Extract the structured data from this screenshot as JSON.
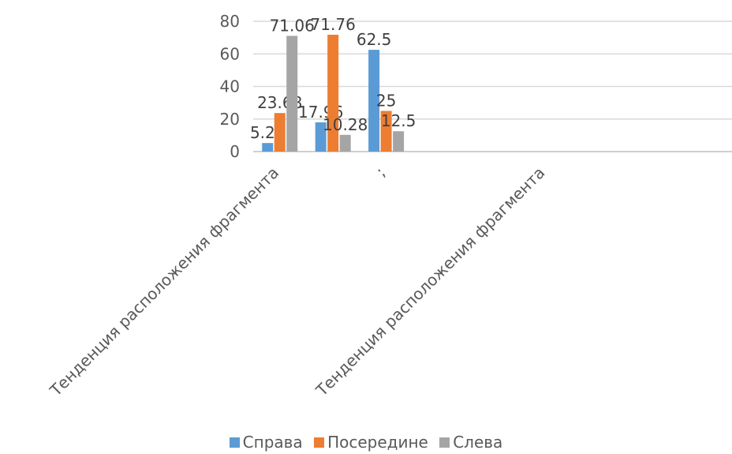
{
  "chart_data": {
    "type": "bar",
    "categories": [
      "Тенденция расположения фрагмента",
      "",
      ";",
      "",
      "",
      "Тенденция расположения фрагмента",
      "",
      "",
      ""
    ],
    "x_tick_labels": [
      {
        "index": 0,
        "text": "Тенденция расположения фрагмента"
      },
      {
        "index": 2,
        "text": ";"
      },
      {
        "index": 5,
        "text": "Тенденция расположения фрагмента"
      }
    ],
    "series": [
      {
        "name": "Справа",
        "color": "#5B9BD5",
        "values": [
          5.26,
          17.96,
          62.5,
          null,
          null,
          null,
          null,
          null,
          null
        ]
      },
      {
        "name": "Посередине",
        "color": "#ED7D31",
        "values": [
          23.68,
          71.76,
          25,
          null,
          null,
          null,
          null,
          null,
          null
        ]
      },
      {
        "name": "Слева",
        "color": "#A5A5A5",
        "values": [
          71.06,
          10.28,
          12.5,
          null,
          null,
          null,
          null,
          null,
          null
        ]
      }
    ],
    "data_labels": [
      [
        "5.26",
        "17.96",
        "62.5"
      ],
      [
        "23.68",
        "71.76",
        "25"
      ],
      [
        "71.06",
        "10.28",
        "12.5"
      ]
    ],
    "ylim": [
      0,
      80
    ],
    "y_ticks": [
      0,
      20,
      40,
      60,
      80
    ],
    "grid": true,
    "legend_position": "bottom",
    "title": "",
    "xlabel": "",
    "ylabel": ""
  }
}
